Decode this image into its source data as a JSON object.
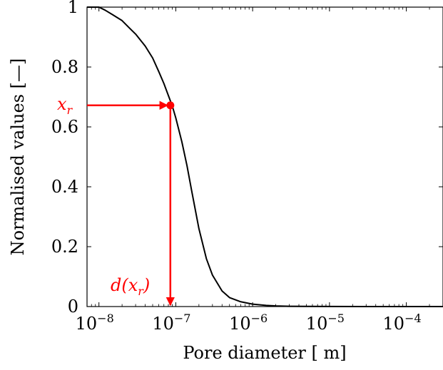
{
  "chart_data": {
    "type": "line",
    "xlabel": "Pore diameter [ m]",
    "ylabel": "Normalised values [—]",
    "xscale": "log",
    "xlim": [
      7e-09,
      0.0003
    ],
    "ylim": [
      0,
      1
    ],
    "grid": false,
    "x_ticks": [
      {
        "value": 1e-08,
        "label_base": "10",
        "label_exp": "−8"
      },
      {
        "value": 1e-07,
        "label_base": "10",
        "label_exp": "−7"
      },
      {
        "value": 1e-06,
        "label_base": "10",
        "label_exp": "−6"
      },
      {
        "value": 1e-05,
        "label_base": "10",
        "label_exp": "−5"
      },
      {
        "value": 0.0001,
        "label_base": "10",
        "label_exp": "−4"
      }
    ],
    "y_ticks": [
      {
        "value": 0,
        "label": "0"
      },
      {
        "value": 0.2,
        "label": "0.2"
      },
      {
        "value": 0.4,
        "label": "0.4"
      },
      {
        "value": 0.6,
        "label": "0.6"
      },
      {
        "value": 0.8,
        "label": "0.8"
      },
      {
        "value": 1,
        "label": "1"
      }
    ],
    "series": [
      {
        "color": "#000000",
        "x": [
          7e-09,
          1e-08,
          1.2e-08,
          1.5e-08,
          2e-08,
          2.5e-08,
          3e-08,
          4e-08,
          5e-08,
          6e-08,
          7e-08,
          8e-08,
          9e-08,
          1e-07,
          1.2e-07,
          1.4e-07,
          1.6e-07,
          2e-07,
          2.5e-07,
          3e-07,
          4e-07,
          5e-07,
          7e-07,
          1e-06,
          1.5e-06,
          2e-06,
          3e-06,
          5e-06,
          1e-05,
          3e-05,
          0.0001,
          0.0003
        ],
        "y": [
          1.0,
          1.0,
          0.99,
          0.975,
          0.955,
          0.93,
          0.91,
          0.87,
          0.83,
          0.785,
          0.745,
          0.705,
          0.67,
          0.63,
          0.55,
          0.47,
          0.39,
          0.26,
          0.16,
          0.105,
          0.052,
          0.03,
          0.016,
          0.008,
          0.004,
          0.002,
          0.001,
          0.0005,
          0.0002,
          0.0001,
          0.0,
          0.0
        ]
      }
    ],
    "annotation": {
      "color": "#ff0000",
      "x": 8.5e-08,
      "y": 0.672,
      "y_label": "x",
      "y_label_sub": "r",
      "x_label": "d(x",
      "x_label_sub": "r",
      "x_label_close": ")"
    }
  }
}
